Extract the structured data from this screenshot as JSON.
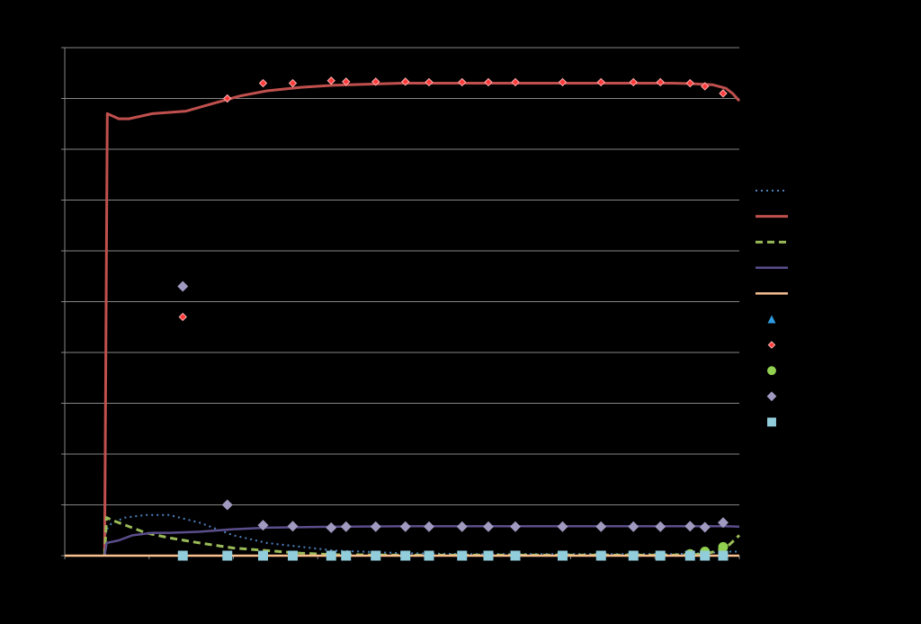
{
  "chart_data": {
    "type": "line",
    "title": "",
    "xlabel": "",
    "ylabel": "",
    "xlim": [
      0,
      1
    ],
    "ylim": [
      0,
      100
    ],
    "grid": true,
    "legend": "right",
    "series": [
      {
        "kind": "line",
        "color": "#4f81bd",
        "dash": "2,4",
        "width": 2,
        "x": [
          0.059,
          0.061,
          0.07,
          0.09,
          0.12,
          0.155,
          0.2,
          0.25,
          0.3,
          0.4,
          0.5,
          0.6,
          0.7,
          0.8,
          0.9,
          0.93,
          0.96,
          0.98,
          1.0
        ],
        "y": [
          0,
          5,
          6.5,
          7.5,
          8,
          8,
          6.5,
          4,
          2.5,
          1,
          0.5,
          0.3,
          0.3,
          0.3,
          0.3,
          0.4,
          0.6,
          0.8,
          0.8
        ]
      },
      {
        "kind": "line",
        "color": "#c0504d",
        "dash": "",
        "width": 3,
        "x": [
          0.059,
          0.063,
          0.07,
          0.08,
          0.095,
          0.13,
          0.18,
          0.22,
          0.26,
          0.3,
          0.35,
          0.4,
          0.5,
          0.6,
          0.7,
          0.8,
          0.9,
          0.93,
          0.96,
          0.98,
          0.99,
          1.0
        ],
        "y": [
          0,
          87,
          86.6,
          86,
          86,
          87,
          87.5,
          89,
          90.5,
          91.5,
          92.2,
          92.6,
          93,
          93,
          93,
          93,
          93,
          92.9,
          92.7,
          92,
          91,
          89.5
        ]
      },
      {
        "kind": "line",
        "color": "#9bbb59",
        "dash": "8,5",
        "width": 3,
        "x": [
          0.059,
          0.062,
          0.07,
          0.09,
          0.12,
          0.155,
          0.2,
          0.25,
          0.3,
          0.35,
          0.4,
          0.5,
          0.6,
          0.7,
          0.8,
          0.9,
          0.95,
          0.98,
          1.0
        ],
        "y": [
          0,
          7.5,
          7,
          6,
          4.5,
          3.5,
          2.5,
          1.5,
          1,
          0.5,
          0.2,
          0.1,
          0.1,
          0.1,
          0.1,
          0.1,
          0.3,
          1.5,
          4
        ]
      },
      {
        "kind": "line",
        "color": "#5b4e8c",
        "dash": "",
        "width": 2.5,
        "x": [
          0.059,
          0.062,
          0.08,
          0.1,
          0.13,
          0.155,
          0.2,
          0.25,
          0.3,
          0.4,
          0.5,
          0.6,
          0.7,
          0.8,
          0.9,
          0.95,
          0.98,
          1.0
        ],
        "y": [
          0,
          2.5,
          3,
          4,
          4.5,
          4.5,
          4.7,
          5.2,
          5.5,
          5.7,
          5.8,
          5.8,
          5.8,
          5.8,
          5.8,
          5.8,
          5.8,
          5.7
        ]
      },
      {
        "kind": "line",
        "color": "#fac090",
        "dash": "",
        "width": 2.5,
        "x": [
          0.0,
          1.0
        ],
        "y": [
          0,
          0
        ]
      },
      {
        "kind": "scatter",
        "marker": "triangle",
        "color": "#2e9be0",
        "size": 10,
        "x": [],
        "y": []
      },
      {
        "kind": "scatter",
        "marker": "diamond",
        "color": "#ff3b3b",
        "size": 8,
        "x": [
          0.175,
          0.241,
          0.294,
          0.338,
          0.395,
          0.417,
          0.461,
          0.505,
          0.54,
          0.589,
          0.628,
          0.668,
          0.738,
          0.795,
          0.843,
          0.883,
          0.927,
          0.949,
          0.976
        ],
        "y": [
          47,
          90,
          93,
          93,
          93.5,
          93.3,
          93.3,
          93.3,
          93.2,
          93.2,
          93.2,
          93.2,
          93.2,
          93.2,
          93.2,
          93.2,
          93,
          92.4,
          91
        ]
      },
      {
        "kind": "scatter",
        "marker": "circle",
        "color": "#92d050",
        "size": 11,
        "x": [
          0.927,
          0.949,
          0.976
        ],
        "y": [
          0.3,
          0.8,
          1.7
        ]
      },
      {
        "kind": "scatter",
        "marker": "diamond",
        "color": "#a09ac0",
        "size": 12,
        "x": [
          0.175,
          0.241,
          0.294,
          0.338,
          0.395,
          0.417,
          0.461,
          0.505,
          0.54,
          0.589,
          0.628,
          0.668,
          0.738,
          0.795,
          0.843,
          0.883,
          0.927,
          0.949,
          0.976
        ],
        "y": [
          53,
          10,
          6,
          5.8,
          5.5,
          5.7,
          5.7,
          5.7,
          5.7,
          5.7,
          5.7,
          5.7,
          5.7,
          5.7,
          5.7,
          5.7,
          5.8,
          5.6,
          6.5
        ]
      },
      {
        "kind": "scatter",
        "marker": "square",
        "color": "#92cddc",
        "size": 11,
        "x": [
          0.175,
          0.241,
          0.294,
          0.338,
          0.395,
          0.417,
          0.461,
          0.505,
          0.54,
          0.589,
          0.628,
          0.668,
          0.738,
          0.795,
          0.843,
          0.883,
          0.927,
          0.949,
          0.976
        ],
        "y": [
          0,
          0,
          0,
          0,
          0,
          0,
          0,
          0,
          0,
          0,
          0,
          0,
          0,
          0,
          0,
          0,
          0,
          0,
          0
        ]
      }
    ]
  }
}
